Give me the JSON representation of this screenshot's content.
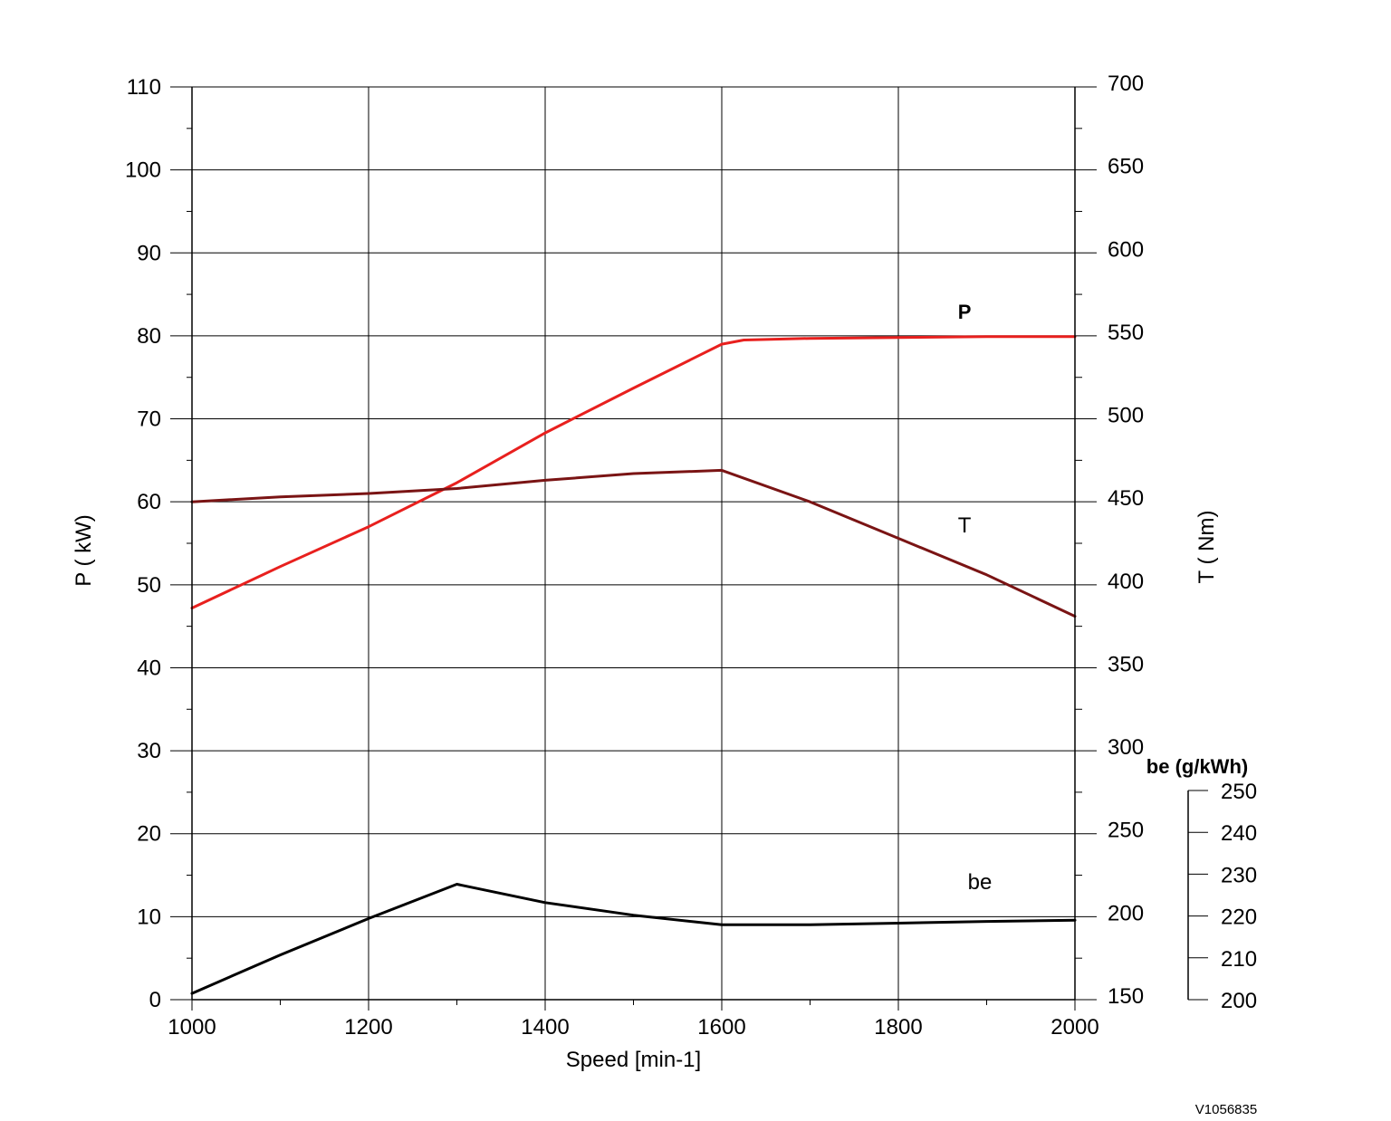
{
  "chart_data": {
    "type": "line",
    "x_axis": {
      "label": "Speed [min-1]",
      "range": [
        1000,
        2000
      ],
      "ticks": [
        1000,
        1200,
        1400,
        1600,
        1800,
        2000
      ]
    },
    "y_axes": [
      {
        "id": "P",
        "label": "P ( kW)",
        "position": "left",
        "range": [
          0,
          110
        ],
        "ticks": [
          0,
          10,
          20,
          30,
          40,
          50,
          60,
          70,
          80,
          90,
          100,
          110
        ]
      },
      {
        "id": "T",
        "label": "T ( Nm)",
        "position": "right",
        "range": [
          150,
          700
        ],
        "ticks": [
          150,
          200,
          250,
          300,
          350,
          400,
          450,
          500,
          550,
          600,
          650,
          700
        ]
      },
      {
        "id": "be",
        "label": "be (g/kWh)",
        "position": "right-lower",
        "range": [
          200,
          250
        ],
        "ticks": [
          200,
          210,
          220,
          230,
          240,
          250
        ]
      }
    ],
    "grid": true,
    "series": [
      {
        "name": "P",
        "axis": "P",
        "color": "#e8201e",
        "x": [
          1000,
          1100,
          1200,
          1300,
          1400,
          1500,
          1600,
          1625,
          1700,
          1800,
          1900,
          2000
        ],
        "y": [
          47.2,
          52.2,
          57.0,
          62.3,
          68.3,
          73.7,
          79.0,
          79.5,
          79.7,
          79.8,
          79.9,
          79.9
        ]
      },
      {
        "name": "T",
        "axis": "T",
        "color": "#7a1414",
        "x": [
          1000,
          1100,
          1200,
          1300,
          1400,
          1500,
          1600,
          1700,
          1800,
          1900,
          2000
        ],
        "y": [
          450,
          453,
          455,
          458,
          463,
          467,
          469,
          450,
          428,
          406,
          381
        ]
      },
      {
        "name": "be",
        "axis": "be",
        "color": "#000000",
        "x": [
          1000,
          1100,
          1200,
          1300,
          1400,
          1500,
          1600,
          1700,
          1800,
          1900,
          2000
        ],
        "y": [
          201.5,
          210.7,
          219.4,
          227.6,
          223.2,
          220.2,
          217.9,
          217.9,
          218.3,
          218.7,
          219.0
        ]
      }
    ],
    "annotations": [
      {
        "text": "P",
        "series": "P",
        "x": 1875,
        "y": 80
      },
      {
        "text": "T",
        "series": "T",
        "x": 1875,
        "y": 430
      },
      {
        "text": "be",
        "series": "be",
        "x": 1890,
        "y": 213
      }
    ]
  },
  "reference_code": "V1056835"
}
